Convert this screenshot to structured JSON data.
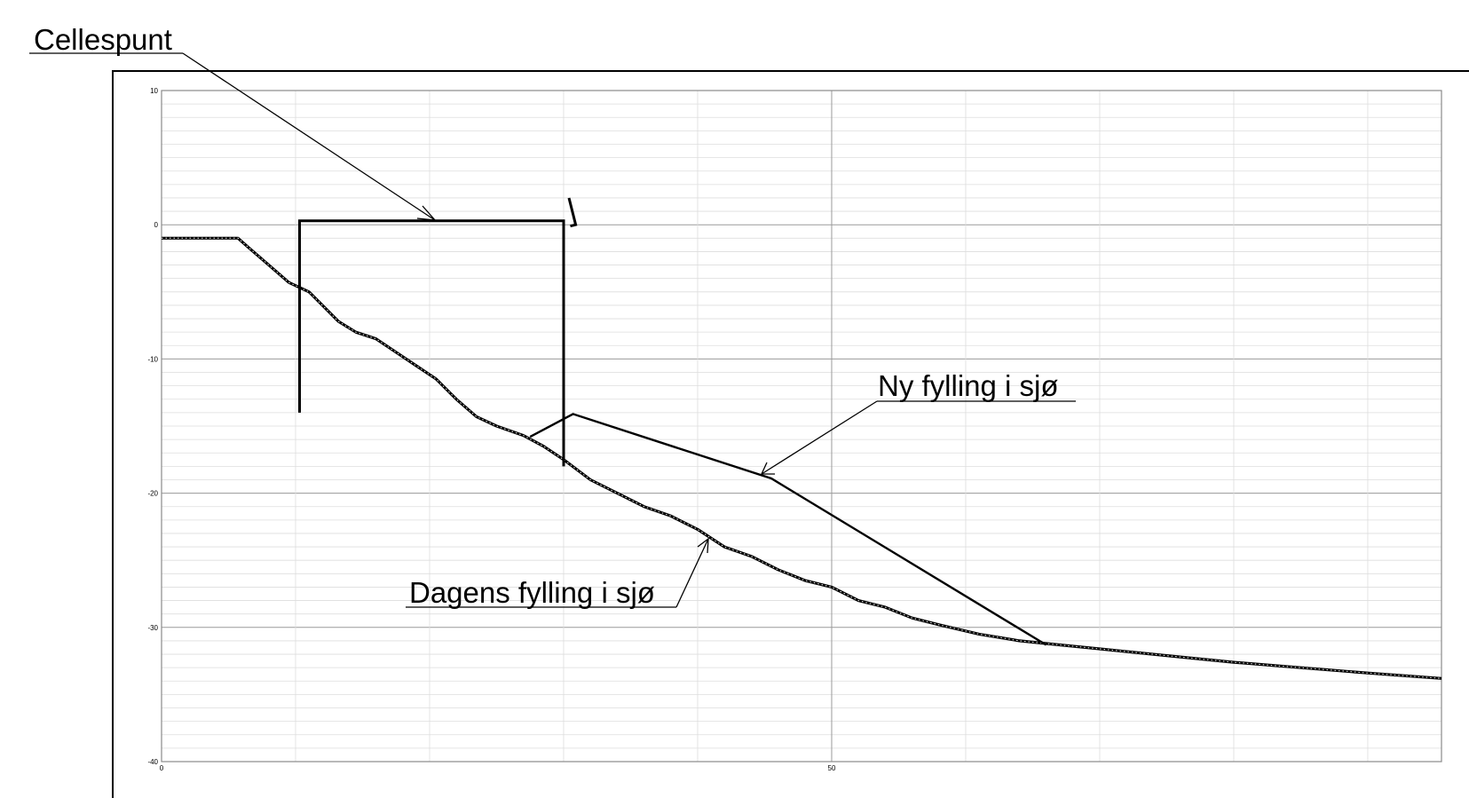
{
  "labels": {
    "cellespunt": "Cellespunt",
    "ny_fylling": "Ny fylling i sjø",
    "dagens_fylling": "Dagens fylling i sjø"
  },
  "chart_data": {
    "type": "line",
    "xlim": [
      0,
      95.5
    ],
    "ylim": [
      -40,
      10
    ],
    "grid": true,
    "x_ticks": [
      {
        "value": 0,
        "label": "0"
      },
      {
        "value": 50,
        "label": "50"
      }
    ],
    "y_ticks": [
      {
        "value": 10,
        "label": "10"
      },
      {
        "value": 0,
        "label": "0"
      },
      {
        "value": -10,
        "label": "-10"
      },
      {
        "value": -20,
        "label": "-20"
      },
      {
        "value": -30,
        "label": "-30"
      },
      {
        "value": -40,
        "label": "-40"
      }
    ],
    "series": [
      {
        "key": "dagens",
        "style": "dotted-thick",
        "points": [
          [
            0,
            -1
          ],
          [
            5.7,
            -1
          ],
          [
            6.5,
            -1.7
          ],
          [
            8,
            -3
          ],
          [
            9.5,
            -4.3
          ],
          [
            11,
            -5
          ],
          [
            12,
            -6
          ],
          [
            13.2,
            -7.2
          ],
          [
            14.5,
            -8
          ],
          [
            16,
            -8.5
          ],
          [
            17.5,
            -9.5
          ],
          [
            19,
            -10.5
          ],
          [
            20.5,
            -11.5
          ],
          [
            22,
            -13
          ],
          [
            23.5,
            -14.3
          ],
          [
            25,
            -15
          ],
          [
            27,
            -15.7
          ],
          [
            28.5,
            -16.5
          ],
          [
            30,
            -17.5
          ],
          [
            32,
            -19
          ],
          [
            34,
            -20
          ],
          [
            36,
            -21
          ],
          [
            38,
            -21.7
          ],
          [
            40,
            -22.7
          ],
          [
            42,
            -24
          ],
          [
            44,
            -24.7
          ],
          [
            46,
            -25.7
          ],
          [
            48,
            -26.5
          ],
          [
            50,
            -27
          ],
          [
            52,
            -28
          ],
          [
            54,
            -28.5
          ],
          [
            56,
            -29.3
          ],
          [
            58,
            -29.8
          ],
          [
            61,
            -30.5
          ],
          [
            64,
            -31
          ],
          [
            67,
            -31.3
          ],
          [
            70,
            -31.6
          ],
          [
            75,
            -32.1
          ],
          [
            80,
            -32.6
          ],
          [
            85,
            -33
          ],
          [
            90,
            -33.4
          ],
          [
            95.5,
            -33.8
          ]
        ]
      },
      {
        "key": "ny",
        "style": "solid",
        "points": [
          [
            27.5,
            -15.8
          ],
          [
            30.7,
            -14.1
          ],
          [
            45.5,
            -18.9
          ],
          [
            66,
            -31.3
          ]
        ]
      },
      {
        "key": "cellespunt",
        "style": "solid-thick",
        "points": [
          [
            10.3,
            -14
          ],
          [
            10.3,
            0.3
          ],
          [
            30,
            0.3
          ],
          [
            30,
            -18
          ]
        ]
      },
      {
        "key": "mark",
        "style": "solid-thick",
        "points": [
          [
            30.4,
            2
          ],
          [
            30.9,
            0
          ],
          [
            30.5,
            -0.1
          ]
        ]
      }
    ]
  }
}
